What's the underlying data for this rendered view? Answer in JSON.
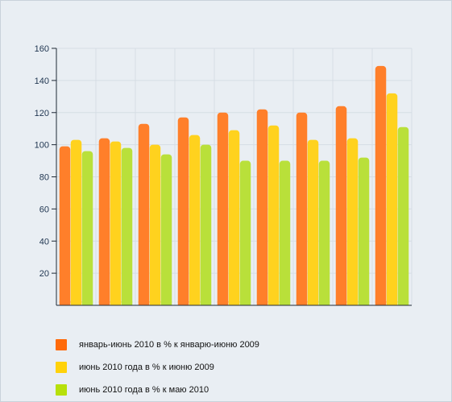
{
  "chart_data": {
    "type": "bar",
    "categories": [
      "",
      "",
      "",
      "",
      "",
      "",
      "",
      "",
      ""
    ],
    "series": [
      {
        "name": "январь-июнь 2010 в % к январю-июню 2009",
        "color": "#ff7f2a",
        "values": [
          99,
          104,
          113,
          117,
          120,
          122,
          120,
          124,
          149
        ]
      },
      {
        "name": "июнь 2010 года в % к июню 2009",
        "color": "#ffd21e",
        "values": [
          103,
          102,
          100,
          106,
          109,
          112,
          103,
          104,
          132
        ]
      },
      {
        "name": "июнь 2010 года в % к  маю 2010",
        "color": "#b9e03a",
        "values": [
          96,
          98,
          94,
          100,
          90,
          90,
          90,
          92,
          111
        ]
      }
    ],
    "ylim": [
      0,
      160
    ],
    "yticks": [
      20,
      40,
      60,
      80,
      100,
      120,
      140,
      160
    ],
    "grid": true,
    "legend_position": "bottom-left"
  },
  "legend_colors": [
    "#ff6a0a",
    "#ffd20a",
    "#b7e00a"
  ]
}
